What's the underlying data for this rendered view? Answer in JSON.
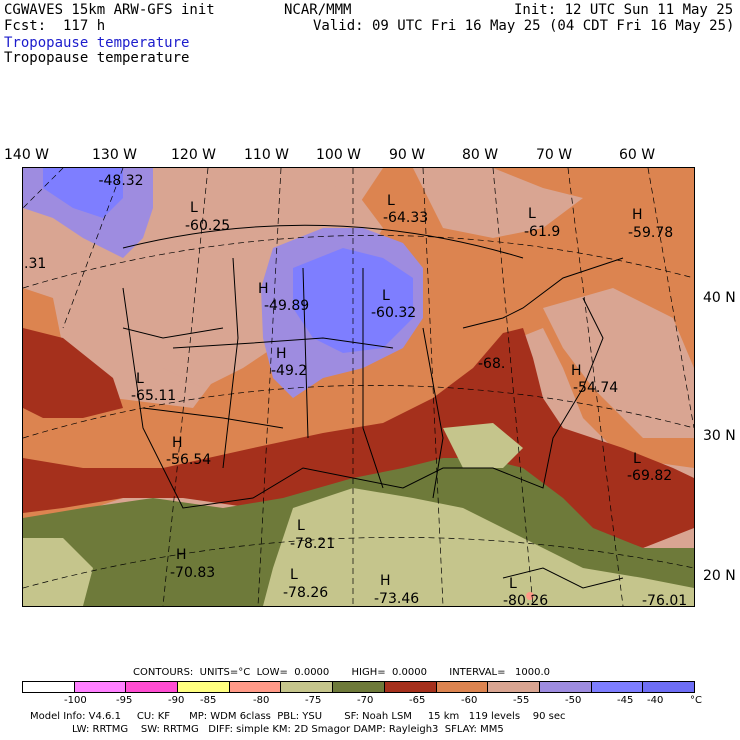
{
  "header": {
    "model": "CGWAVES 15km ARW-GFS init",
    "forecast": "Fcst:  117 h",
    "center": "NCAR/MMM",
    "init": "Init: 12 UTC Sun 11 May 25",
    "valid": "Valid: 09 UTC Fri 16 May 25 (04 CDT Fri 16 May 25)",
    "field1": "Tropopause temperature",
    "field2": "Tropopause temperature"
  },
  "longitudes": [
    "140 W",
    "130 W",
    "120 W",
    "110 W",
    "100 W",
    "90 W",
    "80 W",
    "70 W",
    "60 W"
  ],
  "latitudes": [
    "40 N",
    "30 N",
    "20 N"
  ],
  "extrema": [
    {
      "type": "",
      "value": "-48.32"
    },
    {
      "type": "L",
      "value": "-60.25"
    },
    {
      "type": "L",
      "value": "-64.33"
    },
    {
      "type": "L",
      "value": "-61.9"
    },
    {
      "type": "H",
      "value": "-59.78"
    },
    {
      "type": "",
      "value": ".31"
    },
    {
      "type": "H",
      "value": "-49.89"
    },
    {
      "type": "L",
      "value": "-60.32"
    },
    {
      "type": "H",
      "value": "-49.2"
    },
    {
      "type": "",
      "value": "-68."
    },
    {
      "type": "H",
      "value": "-54.74"
    },
    {
      "type": "L",
      "value": "-65.11"
    },
    {
      "type": "H",
      "value": "-56.54"
    },
    {
      "type": "L",
      "value": "-69.82"
    },
    {
      "type": "L",
      "value": "-78.21"
    },
    {
      "type": "H",
      "value": "-70.83"
    },
    {
      "type": "L",
      "value": "-78.26"
    },
    {
      "type": "H",
      "value": "-73.46"
    },
    {
      "type": "L",
      "value": "-80.26"
    },
    {
      "type": "",
      "value": "-76.01"
    }
  ],
  "contours": {
    "text": "CONTOURS:  UNITS=°C  LOW=  0.0000       HIGH=  0.0000       INTERVAL=   1000.0"
  },
  "colorbar": {
    "colors": [
      "#ffffff",
      "#ff80ff",
      "#ff4dd2",
      "#ffff80",
      "#ff9a88",
      "#c5c58c",
      "#6e7a3a",
      "#a5301c",
      "#dc8450",
      "#d9a592",
      "#9e8ce0",
      "#7e7eff",
      "#6e6ef5"
    ],
    "labels": [
      "-100",
      "-95",
      "-90",
      "-85",
      "-80",
      "-75",
      "-70",
      "-65",
      "-60",
      "-55",
      "-50",
      "-45",
      "-40",
      "°C"
    ]
  },
  "footer": {
    "line1": "Model Info: V4.6.1     CU: KF      MP: WDM 6class  PBL: YSU       SF: Noah LSM     15 km   119 levels    90 sec",
    "line2": "LW: RRTMG    SW: RRTMG   DIFF: simple KM: 2D Smagor DAMP: Rayleigh3  SFLAY: MM5"
  }
}
